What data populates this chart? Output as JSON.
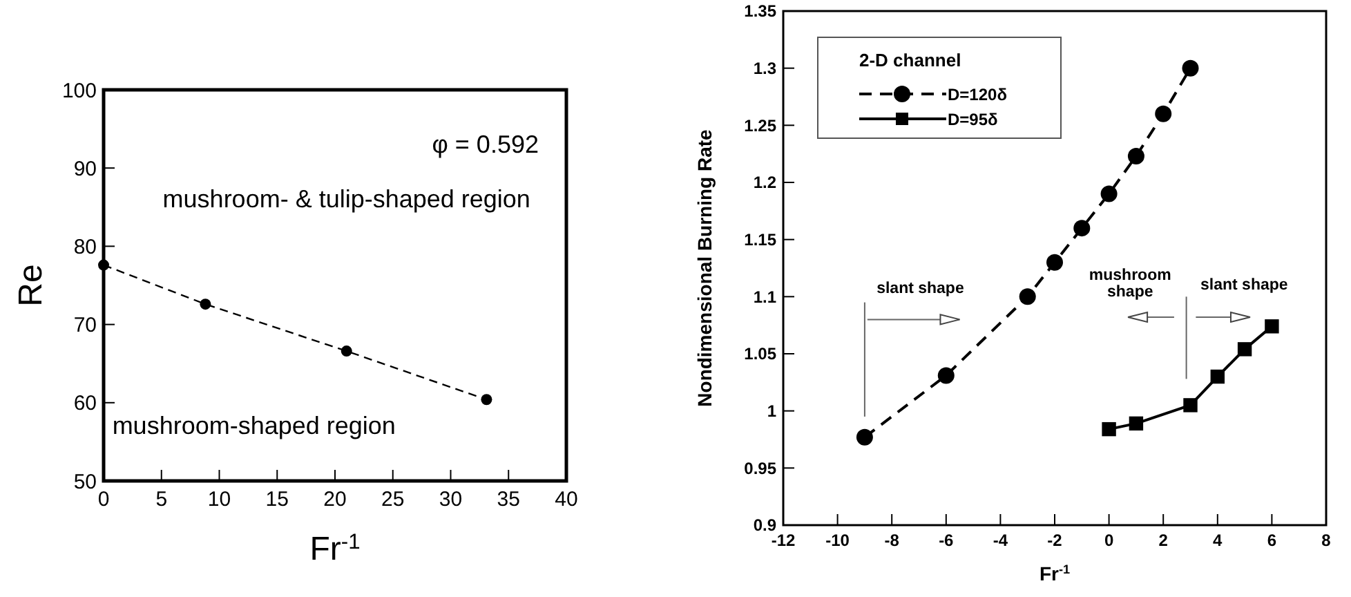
{
  "chart_data": [
    {
      "type": "line",
      "xlabel": "Fr$^{-1}$",
      "ylabel": "Re",
      "xlim": [
        0,
        40
      ],
      "xticks": [
        0,
        5,
        10,
        15,
        20,
        25,
        30,
        35,
        40
      ],
      "ylim": [
        50,
        100
      ],
      "yticks": [
        50,
        60,
        70,
        80,
        90,
        100
      ],
      "grid": false,
      "legend": false,
      "x": [
        0,
        8.8,
        21,
        33.1
      ],
      "series": [
        {
          "color": "#000000",
          "values": [
            77.6,
            72.6,
            66.6,
            60.4
          ],
          "marker": "circle",
          "line_style": "dashed"
        }
      ],
      "annotations": [
        "φ = 0.592",
        "mushroom-  & tulip-shaped region",
        "mushroom-shaped region"
      ]
    },
    {
      "type": "line",
      "xlabel": "Fr$^{-1}$",
      "ylabel": "Nondimensional Burning Rate",
      "xlim": [
        -12,
        8
      ],
      "xticks": [
        -12,
        -10,
        -8,
        -6,
        -4,
        -2,
        0,
        2,
        4,
        6,
        8
      ],
      "ylim": [
        0.9,
        1.35
      ],
      "yticks": [
        0.9,
        0.95,
        1,
        1.05,
        1.1,
        1.15,
        1.2,
        1.25,
        1.3,
        1.35
      ],
      "grid": false,
      "legend": "top left",
      "legend_title": "2-D channel",
      "series": [
        {
          "name": "D=120δ",
          "color": "#000000",
          "x": [
            -9,
            -6,
            -3,
            -2,
            -1,
            0,
            1,
            2,
            3
          ],
          "values": [
            0.977,
            1.031,
            1.1,
            1.13,
            1.16,
            1.19,
            1.223,
            1.26,
            1.3
          ],
          "marker": "circle",
          "line_style": "dashed"
        },
        {
          "name": "D=95δ",
          "color": "#000000",
          "x": [
            0,
            1,
            3,
            4,
            5,
            6
          ],
          "values": [
            0.984,
            0.989,
            1.005,
            1.03,
            1.054,
            1.074
          ],
          "marker": "square",
          "line_style": "solid"
        }
      ],
      "annotations": [
        "slant shape",
        "mushroom\nshape",
        "slant shape"
      ]
    }
  ]
}
